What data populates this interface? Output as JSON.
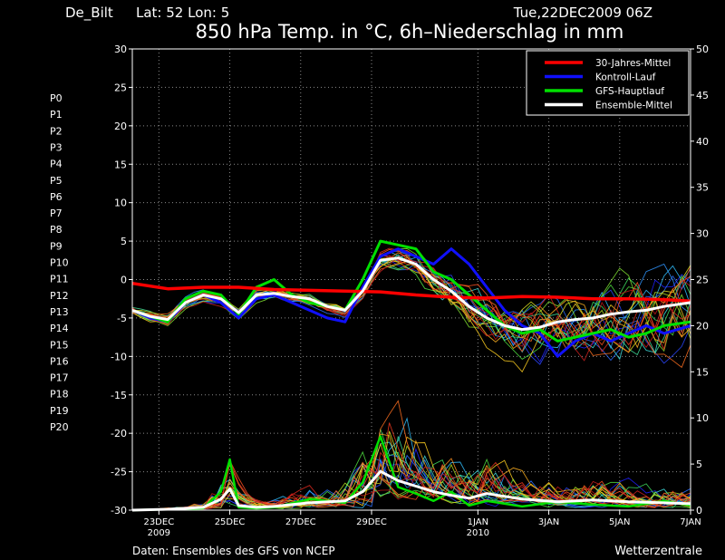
{
  "header": {
    "station": "De_Bilt",
    "coords": "Lat: 52 Lon: 5",
    "run": "Tue,22DEC2009 06Z",
    "title": "850 hPa Temp. in °C, 6h–Niederschlag in mm"
  },
  "footer": {
    "source": "Daten: Ensembles des GFS von NCEP",
    "brand": "Wetterzentrale"
  },
  "members": [
    "P0",
    "P1",
    "P2",
    "P3",
    "P4",
    "P5",
    "P6",
    "P7",
    "P8",
    "P9",
    "P10",
    "P11",
    "P12",
    "P13",
    "P14",
    "P15",
    "P16",
    "P17",
    "P18",
    "P19",
    "P20"
  ],
  "member_colors": [
    "#2020ff",
    "#2a45ff",
    "#2b6dff",
    "#2f95ff",
    "#30c0ff",
    "#40e0e0",
    "#40e09a",
    "#40e060",
    "#50e040",
    "#80e030",
    "#b0e020",
    "#e0e020",
    "#ffd020",
    "#ffb020",
    "#ff9020",
    "#ff7020",
    "#ff5020",
    "#f03a20",
    "#e02a20",
    "#d02020",
    "#c01818"
  ],
  "chart_data": {
    "type": "line",
    "x_ticks": [
      {
        "t": 0.75,
        "label": "23DEC",
        "sub": "2009"
      },
      {
        "t": 2.75,
        "label": "25DEC",
        "sub": ""
      },
      {
        "t": 4.75,
        "label": "27DEC",
        "sub": ""
      },
      {
        "t": 6.75,
        "label": "29DEC",
        "sub": ""
      },
      {
        "t": 9.75,
        "label": "1JAN",
        "sub": "2010"
      },
      {
        "t": 11.75,
        "label": "3JAN",
        "sub": ""
      },
      {
        "t": 13.75,
        "label": "5JAN",
        "sub": ""
      },
      {
        "t": 15.75,
        "label": "7JAN",
        "sub": ""
      }
    ],
    "x_range_days": [
      0,
      15.75
    ],
    "y_left": {
      "min": -30,
      "max": 30,
      "ticks": [
        30,
        25,
        20,
        15,
        10,
        5,
        0,
        -5,
        -10,
        -15,
        -20,
        -25,
        -30
      ]
    },
    "y_right": {
      "min": 0,
      "max": 50,
      "ticks": [
        50,
        45,
        40,
        35,
        30,
        25,
        20,
        15,
        10,
        5,
        0
      ]
    },
    "grid": true,
    "legend_position": "top-right",
    "legend": [
      {
        "label": "30-Jahres-Mittel",
        "color": "#ff0000"
      },
      {
        "label": "Kontroll-Lauf",
        "color": "#1010ff"
      },
      {
        "label": "GFS-Hauptlauf",
        "color": "#00e000"
      },
      {
        "label": "Ensemble-Mittel",
        "color": "#ffffff"
      }
    ],
    "series": [
      {
        "name": "30-Jahres-Mittel",
        "axis": "left",
        "t": [
          0,
          1,
          2,
          3,
          4,
          5,
          6,
          7,
          8,
          9,
          10,
          11,
          12,
          13,
          14,
          15,
          15.75
        ],
        "values": [
          -0.5,
          -1.2,
          -1.0,
          -1.0,
          -1.3,
          -1.4,
          -1.5,
          -1.6,
          -2.0,
          -2.3,
          -2.4,
          -2.2,
          -2.3,
          -2.5,
          -2.5,
          -2.6,
          -2.8
        ]
      },
      {
        "name": "Kontroll-Lauf",
        "axis": "left",
        "t": [
          0,
          0.5,
          1,
          1.5,
          2,
          2.5,
          3,
          3.5,
          4,
          4.5,
          5,
          5.5,
          6,
          6.5,
          7,
          7.5,
          8,
          8.5,
          9,
          9.5,
          10,
          10.5,
          11,
          11.5,
          12,
          12.5,
          13,
          13.5,
          14,
          14.5,
          15,
          15.75
        ],
        "values": [
          -4,
          -5,
          -5.5,
          -3,
          -2,
          -3,
          -5,
          -2.5,
          -2,
          -3,
          -4,
          -5,
          -5.5,
          -1,
          3,
          4,
          3,
          2,
          4,
          2,
          -1,
          -4,
          -6,
          -7,
          -10,
          -8,
          -7,
          -8,
          -7,
          -6,
          -7,
          -6
        ]
      },
      {
        "name": "GFS-Hauptlauf",
        "axis": "left",
        "t": [
          0,
          0.5,
          1,
          1.5,
          2,
          2.5,
          3,
          3.5,
          4,
          4.5,
          5,
          5.5,
          6,
          6.5,
          7,
          7.5,
          8,
          8.5,
          9,
          9.5,
          10,
          10.5,
          11,
          11.5,
          12,
          12.5,
          13,
          13.5,
          14,
          14.5,
          15,
          15.75
        ],
        "values": [
          -4,
          -4.8,
          -5.5,
          -2.5,
          -1.5,
          -2,
          -4.5,
          -1,
          0,
          -2,
          -3,
          -3.5,
          -4,
          0,
          5,
          4.5,
          4,
          1,
          0,
          -2,
          -4,
          -6,
          -7,
          -6.5,
          -8,
          -7.5,
          -7,
          -6.5,
          -7.5,
          -7,
          -6,
          -5.5
        ]
      },
      {
        "name": "Ensemble-Mittel",
        "axis": "left",
        "t": [
          0,
          0.5,
          1,
          1.5,
          2,
          2.5,
          3,
          3.5,
          4,
          4.5,
          5,
          5.5,
          6,
          6.5,
          7,
          7.5,
          8,
          8.5,
          9,
          9.5,
          10,
          10.5,
          11,
          11.5,
          12,
          12.5,
          13,
          13.5,
          14,
          14.5,
          15,
          15.75
        ],
        "values": [
          -4,
          -4.8,
          -5.2,
          -3,
          -2,
          -2.5,
          -4.3,
          -2,
          -1.8,
          -2.2,
          -2.5,
          -3.5,
          -4,
          -1.5,
          2.5,
          2.8,
          2,
          0,
          -1.5,
          -3.5,
          -5,
          -6,
          -6.5,
          -6.2,
          -5.5,
          -5.2,
          -5,
          -4.5,
          -4.2,
          -4,
          -3.5,
          -3
        ]
      },
      {
        "name": "Niederschlag Ensemble-Mittel",
        "axis": "right",
        "t": [
          0,
          1,
          2,
          2.5,
          2.75,
          3,
          3.5,
          4,
          5,
          6,
          6.5,
          7,
          7.5,
          8,
          8.5,
          9,
          9.5,
          10,
          11,
          12,
          13,
          14,
          15,
          15.75
        ],
        "values": [
          0,
          0.1,
          0.3,
          1.2,
          2.3,
          0.5,
          0.3,
          0.4,
          0.8,
          1.0,
          2.0,
          4.2,
          3.2,
          2.6,
          2.0,
          1.6,
          1.3,
          1.8,
          1.2,
          0.9,
          1.1,
          0.9,
          0.8,
          0.7
        ]
      },
      {
        "name": "Niederschlag GFS-Hauptlauf",
        "axis": "right",
        "t": [
          0,
          1,
          2,
          2.5,
          2.75,
          3,
          3.5,
          4,
          5,
          6,
          6.5,
          7,
          7.5,
          8,
          8.5,
          9,
          9.5,
          10,
          11,
          12,
          13,
          14,
          15,
          15.75
        ],
        "values": [
          0,
          0.1,
          0.2,
          2.0,
          5.5,
          0.3,
          0.2,
          0.3,
          1.2,
          0.8,
          3.0,
          8.0,
          2.5,
          1.8,
          1.0,
          2.0,
          0.5,
          1.0,
          0.4,
          0.9,
          0.6,
          0.4,
          1.0,
          0.5
        ]
      }
    ]
  }
}
